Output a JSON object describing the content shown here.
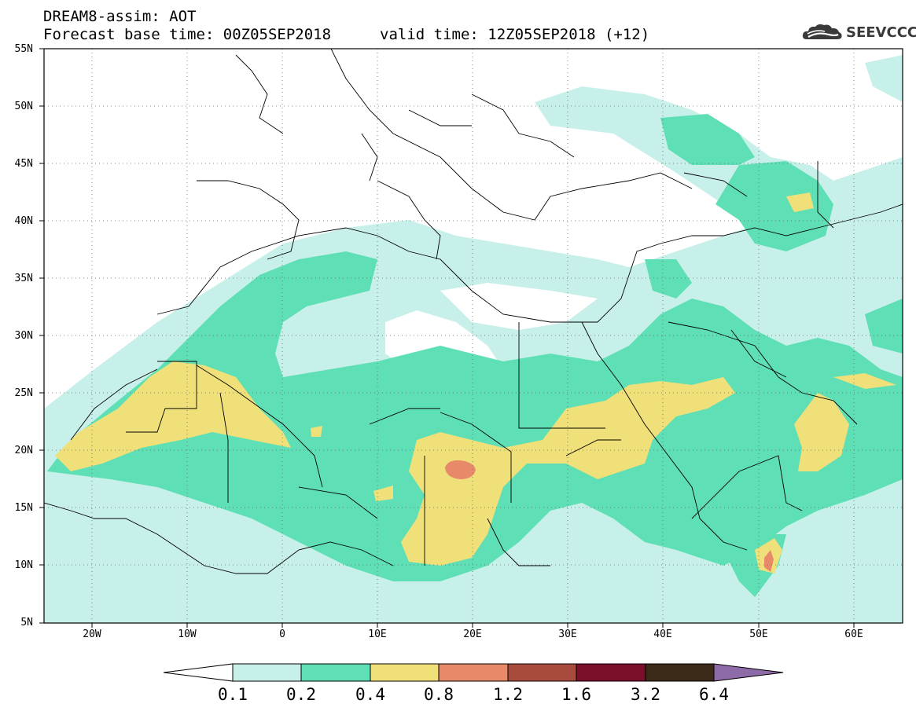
{
  "header": {
    "title": "DREAM8-assim: AOT",
    "base_time": "Forecast base time: 00Z05SEP2018",
    "valid_time": "valid time: 12Z05SEP2018 (+12)"
  },
  "logo": {
    "text": "SEEVCCC",
    "icon": "cloud-logo-icon"
  },
  "map": {
    "lon_range": [
      -25,
      65
    ],
    "lat_range": [
      5,
      55
    ],
    "lat_labels": [
      "55N",
      "50N",
      "45N",
      "40N",
      "35N",
      "30N",
      "25N",
      "20N",
      "15N",
      "10N",
      "5N"
    ],
    "lon_labels": [
      "20W",
      "10W",
      "0",
      "10E",
      "20E",
      "30E",
      "40E",
      "50E",
      "60E"
    ],
    "grid": true
  },
  "colorbar": {
    "labels": [
      "0.1",
      "0.2",
      "0.4",
      "0.8",
      "1.2",
      "1.6",
      "3.2",
      "6.4"
    ],
    "colors": [
      "#ffffff",
      "#c8f0ea",
      "#5fdfb5",
      "#f0e07a",
      "#e8896a",
      "#a94b3c",
      "#7a0f2a",
      "#3b2a17",
      "#8d6ba8"
    ]
  }
}
